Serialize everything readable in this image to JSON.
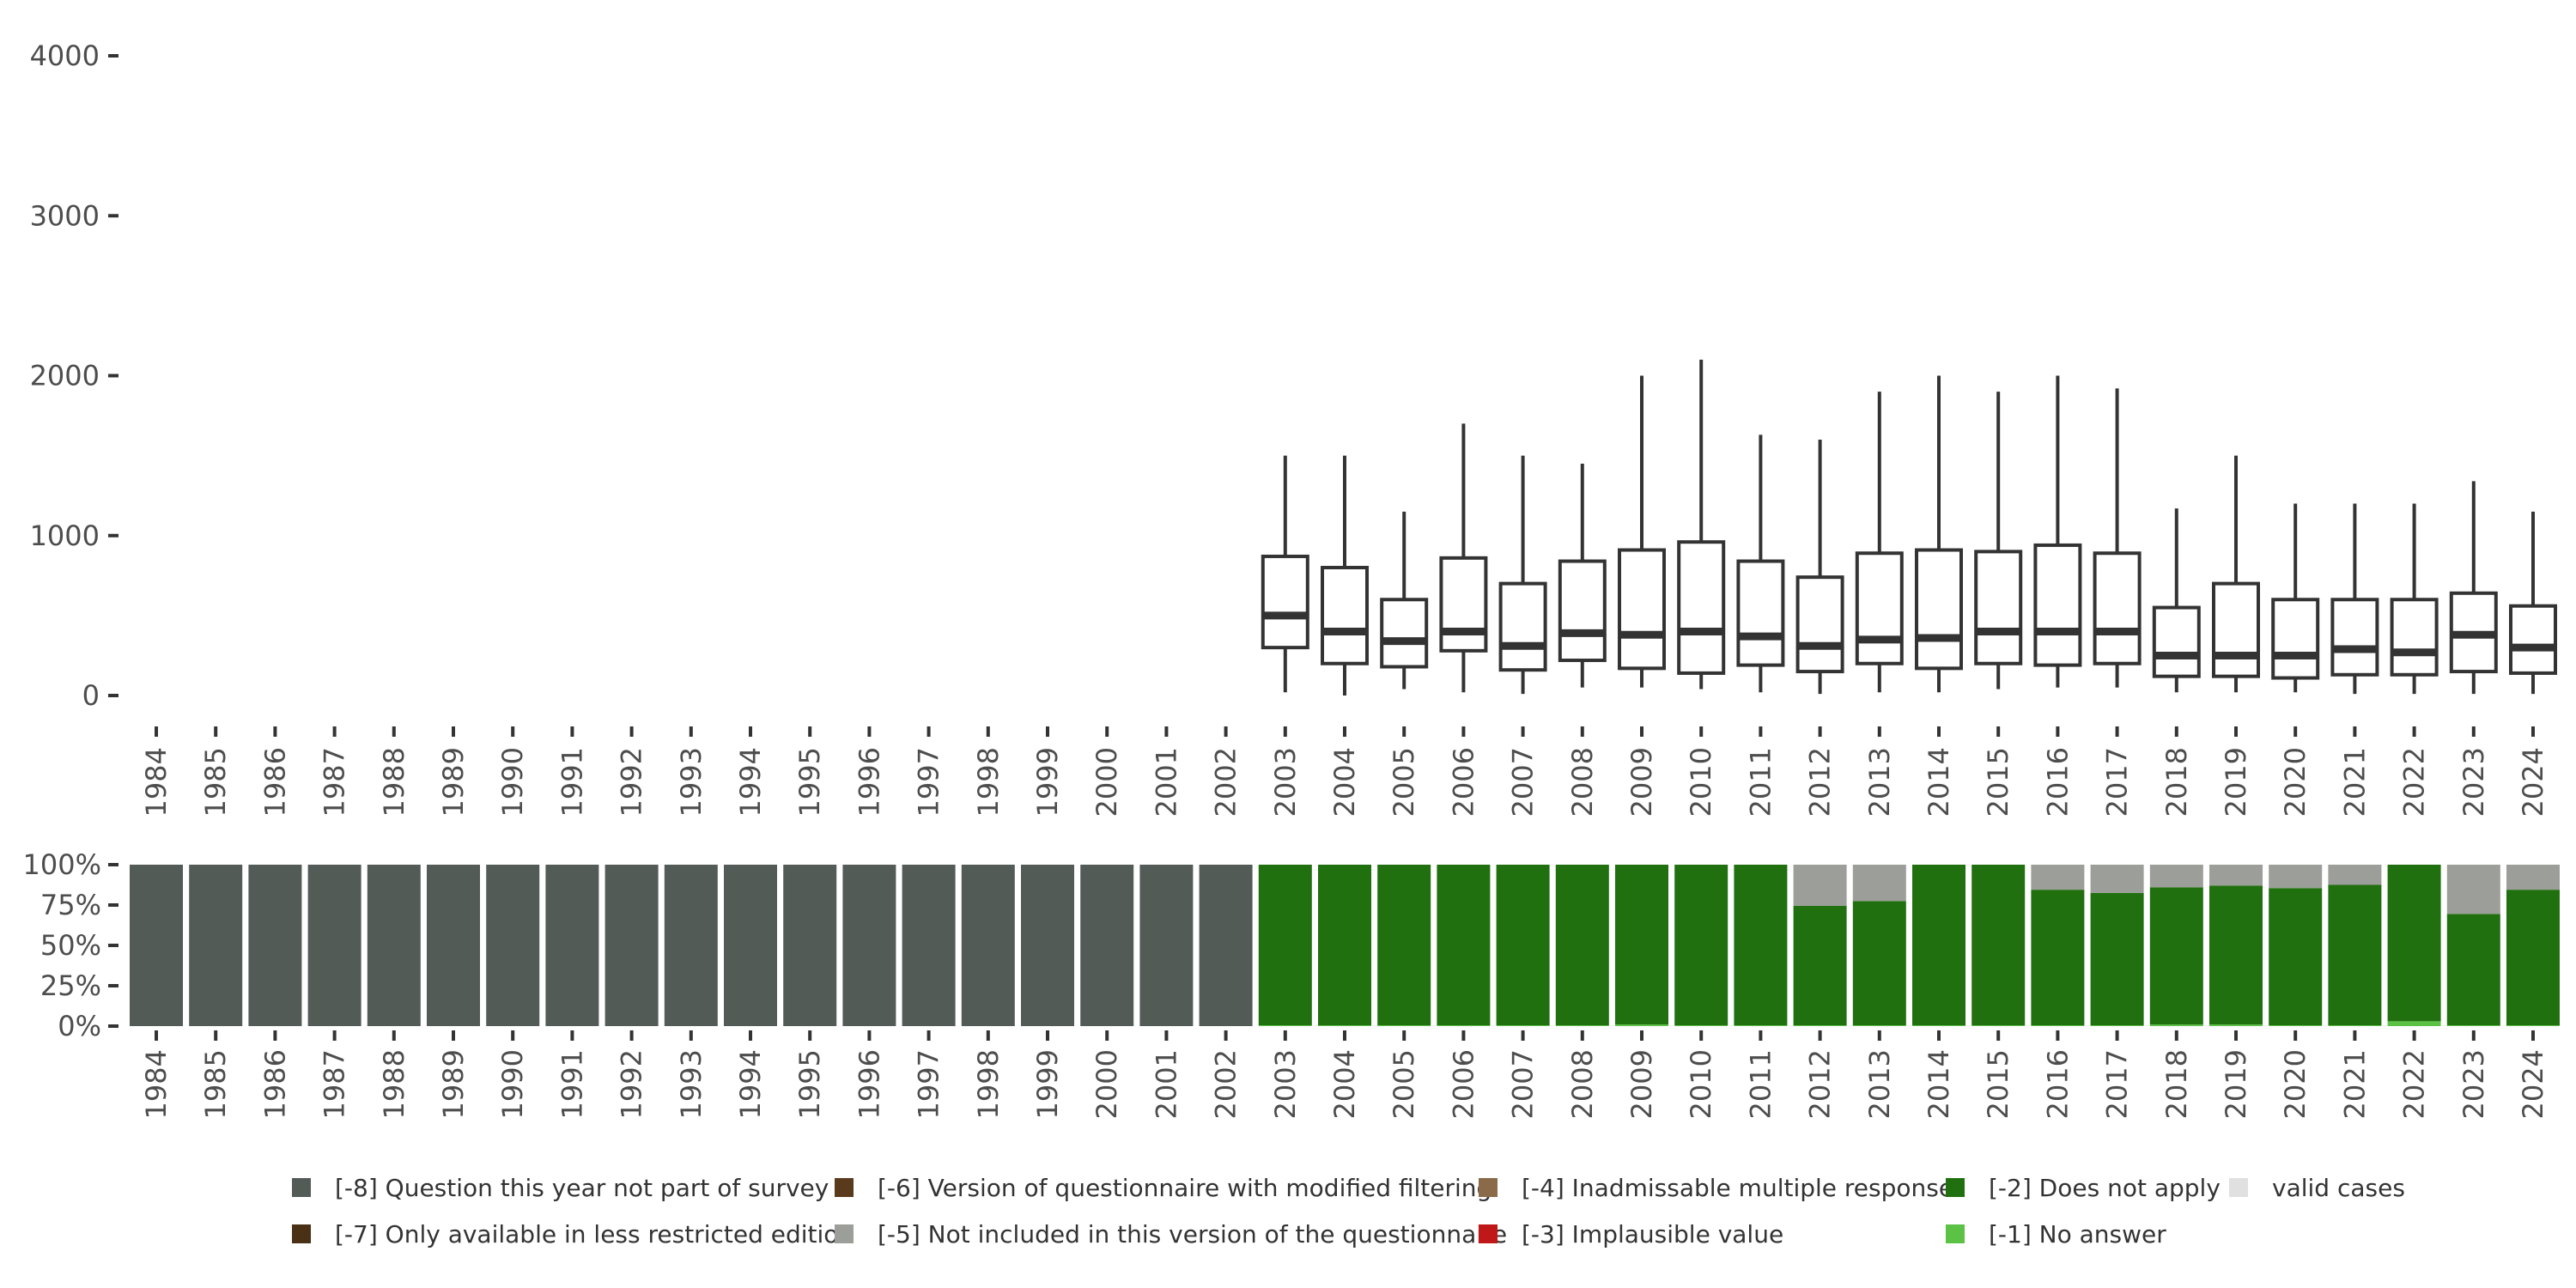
{
  "colors": {
    "box_stroke": "#333333",
    "axis_text": "#4d4d4d",
    "q_not_in_survey": "#535b56",
    "version_modified_filtering": "#5a3a1d",
    "inadmissable_multiple": "#8a6a48",
    "does_not_apply": "#21700f",
    "valid_cases": "#e0e0e0",
    "less_restricted": "#4a3116",
    "not_included": "#9c9e99",
    "implausible": "#c01818",
    "no_answer": "#5cc246"
  },
  "chart_data": [
    {
      "type": "boxplot",
      "x": [
        "1984",
        "1985",
        "1986",
        "1987",
        "1988",
        "1989",
        "1990",
        "1991",
        "1992",
        "1993",
        "1994",
        "1995",
        "1996",
        "1997",
        "1998",
        "1999",
        "2000",
        "2001",
        "2002",
        "2003",
        "2004",
        "2005",
        "2006",
        "2007",
        "2008",
        "2009",
        "2010",
        "2011",
        "2012",
        "2013",
        "2014",
        "2015",
        "2016",
        "2017",
        "2018",
        "2019",
        "2020",
        "2021",
        "2022",
        "2023",
        "2024"
      ],
      "yticks": [
        0,
        1000,
        2000,
        3000,
        4000
      ],
      "ylim": [
        0,
        4000
      ],
      "boxes": [
        {
          "year": "2003",
          "low": 20,
          "q1": 300,
          "median": 500,
          "q3": 870,
          "high": 1500
        },
        {
          "year": "2004",
          "low": 0,
          "q1": 200,
          "median": 400,
          "q3": 800,
          "high": 1500
        },
        {
          "year": "2005",
          "low": 40,
          "q1": 180,
          "median": 340,
          "q3": 600,
          "high": 1150
        },
        {
          "year": "2006",
          "low": 20,
          "q1": 280,
          "median": 400,
          "q3": 860,
          "high": 1700
        },
        {
          "year": "2007",
          "low": 10,
          "q1": 160,
          "median": 310,
          "q3": 700,
          "high": 1500
        },
        {
          "year": "2008",
          "low": 50,
          "q1": 220,
          "median": 390,
          "q3": 840,
          "high": 1450
        },
        {
          "year": "2009",
          "low": 50,
          "q1": 170,
          "median": 380,
          "q3": 910,
          "high": 2000
        },
        {
          "year": "2010",
          "low": 40,
          "q1": 140,
          "median": 400,
          "q3": 960,
          "high": 2100
        },
        {
          "year": "2011",
          "low": 20,
          "q1": 190,
          "median": 370,
          "q3": 840,
          "high": 1630
        },
        {
          "year": "2012",
          "low": 10,
          "q1": 150,
          "median": 310,
          "q3": 740,
          "high": 1600
        },
        {
          "year": "2013",
          "low": 20,
          "q1": 200,
          "median": 350,
          "q3": 890,
          "high": 1900
        },
        {
          "year": "2014",
          "low": 20,
          "q1": 170,
          "median": 360,
          "q3": 910,
          "high": 2000
        },
        {
          "year": "2015",
          "low": 40,
          "q1": 200,
          "median": 400,
          "q3": 900,
          "high": 1900
        },
        {
          "year": "2016",
          "low": 50,
          "q1": 190,
          "median": 400,
          "q3": 940,
          "high": 2000
        },
        {
          "year": "2017",
          "low": 50,
          "q1": 200,
          "median": 400,
          "q3": 890,
          "high": 1920
        },
        {
          "year": "2018",
          "low": 20,
          "q1": 120,
          "median": 250,
          "q3": 550,
          "high": 1170
        },
        {
          "year": "2019",
          "low": 20,
          "q1": 120,
          "median": 250,
          "q3": 700,
          "high": 1500
        },
        {
          "year": "2020",
          "low": 20,
          "q1": 110,
          "median": 250,
          "q3": 600,
          "high": 1200
        },
        {
          "year": "2021",
          "low": 10,
          "q1": 130,
          "median": 290,
          "q3": 600,
          "high": 1200
        },
        {
          "year": "2022",
          "low": 10,
          "q1": 130,
          "median": 270,
          "q3": 600,
          "high": 1200
        },
        {
          "year": "2023",
          "low": 10,
          "q1": 150,
          "median": 380,
          "q3": 640,
          "high": 1340
        },
        {
          "year": "2024",
          "low": 10,
          "q1": 140,
          "median": 300,
          "q3": 560,
          "high": 1150
        }
      ]
    },
    {
      "type": "stacked_bar",
      "x": [
        "1984",
        "1985",
        "1986",
        "1987",
        "1988",
        "1989",
        "1990",
        "1991",
        "1992",
        "1993",
        "1994",
        "1995",
        "1996",
        "1997",
        "1998",
        "1999",
        "2000",
        "2001",
        "2002",
        "2003",
        "2004",
        "2005",
        "2006",
        "2007",
        "2008",
        "2009",
        "2010",
        "2011",
        "2012",
        "2013",
        "2014",
        "2015",
        "2016",
        "2017",
        "2018",
        "2019",
        "2020",
        "2021",
        "2022",
        "2023",
        "2024"
      ],
      "ylim": [
        0,
        100
      ],
      "yticks": [
        "0%",
        "25%",
        "50%",
        "75%",
        "100%"
      ],
      "legend_position": "bottom",
      "series": [
        {
          "name": "[-8] Question this year not part of survey",
          "color_key": "q_not_in_survey",
          "values": [
            100,
            100,
            100,
            100,
            100,
            100,
            100,
            100,
            100,
            100,
            100,
            100,
            100,
            100,
            100,
            100,
            100,
            100,
            100,
            0,
            0,
            0,
            0,
            0,
            0,
            0,
            0,
            0,
            0,
            0,
            0,
            0,
            0,
            0,
            0,
            0,
            0,
            0,
            0,
            0,
            0
          ]
        },
        {
          "name": "[-1] No answer",
          "color_key": "no_answer",
          "values": [
            0,
            0,
            0,
            0,
            0,
            0,
            0,
            0,
            0,
            0,
            0,
            0,
            0,
            0,
            0,
            0,
            0,
            0,
            0,
            0.5,
            0.5,
            0.5,
            0.5,
            0.5,
            0.5,
            1,
            0.5,
            0.5,
            0.5,
            0.5,
            0.5,
            0.5,
            0.5,
            0.5,
            1,
            1,
            0.5,
            0.5,
            3,
            0.5,
            0.5
          ]
        },
        {
          "name": "[-2] Does not apply",
          "color_key": "does_not_apply",
          "values": [
            0,
            0,
            0,
            0,
            0,
            0,
            0,
            0,
            0,
            0,
            0,
            0,
            0,
            0,
            0,
            0,
            0,
            0,
            0,
            99.5,
            99.5,
            99.5,
            99.5,
            99.5,
            99.5,
            99,
            99.5,
            99.5,
            74,
            77,
            99.5,
            99.5,
            84,
            82,
            85,
            86,
            85,
            87,
            97,
            69,
            84
          ]
        },
        {
          "name": "[-5] Not included in this version of the questionnaire",
          "color_key": "not_included",
          "values": [
            0,
            0,
            0,
            0,
            0,
            0,
            0,
            0,
            0,
            0,
            0,
            0,
            0,
            0,
            0,
            0,
            0,
            0,
            0,
            0,
            0,
            0,
            0,
            0,
            0,
            0,
            0,
            0,
            25.5,
            22.5,
            0,
            0,
            15.5,
            17.5,
            14,
            13,
            14.5,
            12.5,
            0,
            30.5,
            15.5
          ]
        }
      ]
    }
  ],
  "legend": [
    {
      "label": "[-8] Question this year not part of survey",
      "color_key": "q_not_in_survey"
    },
    {
      "label": "[-7] Only available in less restricted edition",
      "color_key": "less_restricted"
    },
    {
      "label": "[-6] Version of questionnaire with modified filtering",
      "color_key": "version_modified_filtering"
    },
    {
      "label": "[-5] Not included in this version of the questionnaire",
      "color_key": "not_included"
    },
    {
      "label": "[-4] Inadmissable multiple response",
      "color_key": "inadmissable_multiple"
    },
    {
      "label": "[-3] Implausible value",
      "color_key": "implausible"
    },
    {
      "label": "[-2] Does not apply",
      "color_key": "does_not_apply"
    },
    {
      "label": "[-1] No answer",
      "color_key": "no_answer"
    },
    {
      "label": "valid cases",
      "color_key": "valid_cases"
    }
  ]
}
